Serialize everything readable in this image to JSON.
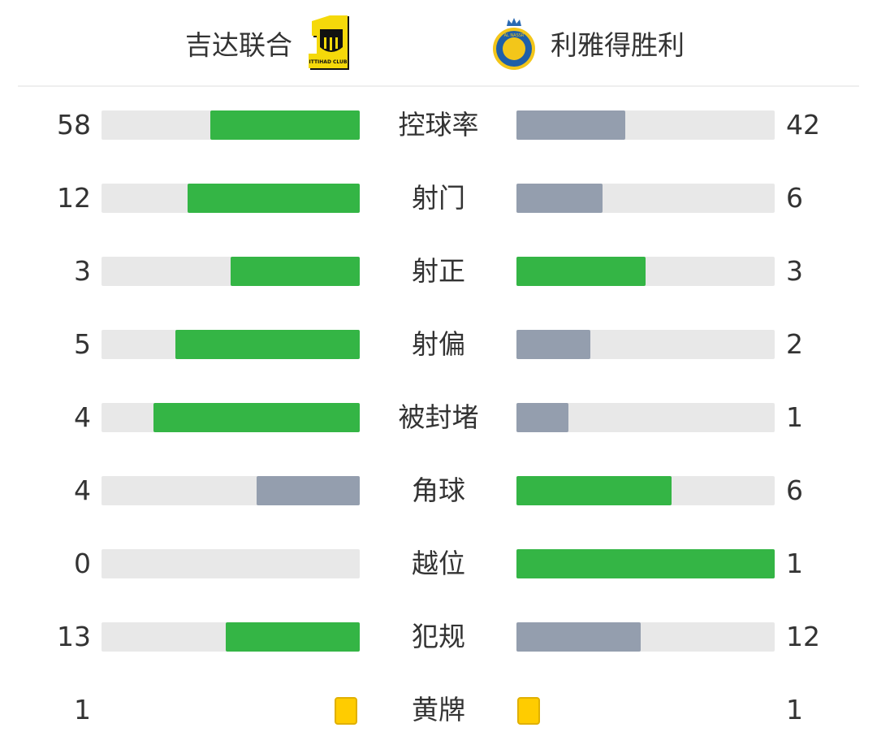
{
  "home": {
    "name": "吉达联合",
    "logo_text": "ITTIHAD CLUB"
  },
  "away": {
    "name": "利雅得胜利",
    "logo_text": "AL NASSR"
  },
  "colors": {
    "win": "#34b545",
    "lose": "#949eae",
    "track": "#e8e8e8",
    "card": "#ffcc00"
  },
  "stats": [
    {
      "label": "控球率",
      "home": "58",
      "away": "42"
    },
    {
      "label": "射门",
      "home": "12",
      "away": "6"
    },
    {
      "label": "射正",
      "home": "3",
      "away": "3"
    },
    {
      "label": "射偏",
      "home": "5",
      "away": "2"
    },
    {
      "label": "被封堵",
      "home": "4",
      "away": "1"
    },
    {
      "label": "角球",
      "home": "4",
      "away": "6"
    },
    {
      "label": "越位",
      "home": "0",
      "away": "1"
    },
    {
      "label": "犯规",
      "home": "13",
      "away": "12"
    },
    {
      "label": "黄牌",
      "home": "1",
      "away": "1",
      "type": "card"
    }
  ]
}
